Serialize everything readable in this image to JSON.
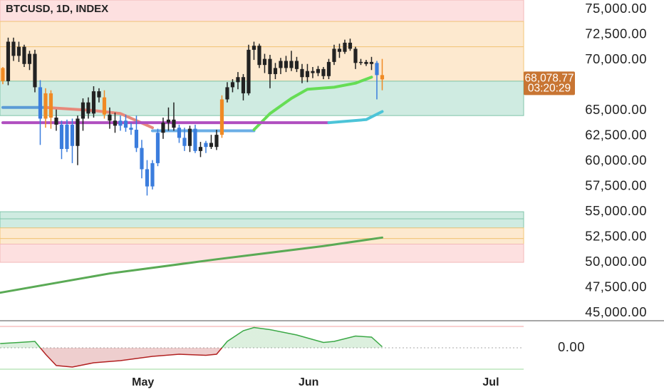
{
  "chart_data": {
    "type": "candlestick",
    "title": "BTCUSD, 1D, INDEX",
    "xlim": [
      -0.53,
      97.47
    ],
    "xticks": [
      {
        "value": 26.1,
        "label": "May"
      },
      {
        "value": 57.1,
        "label": "Jun"
      },
      {
        "value": 91.2,
        "label": "Jul"
      }
    ],
    "ylim": [
      44230,
      75920
    ],
    "yticks": [
      {
        "value": 75000,
        "label": "75,000.00"
      },
      {
        "value": 72500,
        "label": "72,500.00"
      },
      {
        "value": 70000,
        "label": "70,000.00"
      },
      {
        "value": 65000,
        "label": "65,000.00"
      },
      {
        "value": 62500,
        "label": "62,500.00"
      },
      {
        "value": 60000,
        "label": "60,000.00"
      },
      {
        "value": 57500,
        "label": "57,500.00"
      },
      {
        "value": 55000,
        "label": "55,000.00"
      },
      {
        "value": 52500,
        "label": "52,500.00"
      },
      {
        "value": 50000,
        "label": "50,000.00"
      },
      {
        "value": 47500,
        "label": "47,500.00"
      },
      {
        "value": 45000,
        "label": "45,000.00"
      }
    ],
    "last_price": {
      "value": 68078.77,
      "label": "68,078.77",
      "color": "#c87533"
    },
    "countdown": "03:20:29",
    "zones": [
      {
        "from": 73800,
        "to": 75920,
        "fill": "#fde0e0",
        "stroke": "#f3b9b9"
      },
      {
        "from": 71300,
        "to": 73800,
        "fill": "#fde9cf",
        "stroke": "#f2c57a"
      },
      {
        "from": 67900,
        "to": 71300,
        "fill": "#fde9cf",
        "stroke": "#f2c57a"
      },
      {
        "from": 64500,
        "to": 67900,
        "fill": "#cfebe1",
        "stroke": "#80c5aa"
      },
      {
        "from": 54300,
        "to": 55000,
        "fill": "#cfebe1",
        "stroke": "#80c5aa"
      },
      {
        "from": 53400,
        "to": 54300,
        "fill": "#cfebe1",
        "stroke": "#80c5aa"
      },
      {
        "from": 52350,
        "to": 53400,
        "fill": "#fde9cf",
        "stroke": "#f2c57a"
      },
      {
        "from": 51800,
        "to": 52350,
        "fill": "#fde9cf",
        "stroke": "#f2c57a"
      },
      {
        "from": 50000,
        "to": 51800,
        "fill": "#fde0e0",
        "stroke": "#f3b9b9"
      }
    ],
    "open": [
      69200,
      67900,
      71800,
      70400,
      71300,
      69600,
      70600,
      67300,
      64200,
      66700,
      64300,
      63600,
      61200,
      63600,
      61500,
      64200,
      65800,
      64700,
      66900,
      66300,
      64600,
      64000,
      63500,
      64000,
      63300,
      63100,
      61300,
      59200,
      57500,
      59800,
      62800,
      63800,
      64100,
      63300,
      62300,
      61500,
      63200,
      61000,
      61400,
      61800,
      61400,
      62600,
      66100,
      67300,
      67800,
      68300,
      66700,
      71000,
      71400,
      69500,
      70100,
      68600,
      69200,
      69900,
      69200,
      69900,
      69100,
      68300,
      68900,
      68700,
      69100,
      68400,
      69800,
      71100,
      70800,
      71700,
      71100,
      69700,
      69800,
      69600,
      69700,
      68500
    ],
    "high": [
      69300,
      72200,
      72200,
      71800,
      71500,
      70900,
      71000,
      68000,
      67200,
      67000,
      65100,
      64000,
      64100,
      64200,
      64500,
      66200,
      66300,
      67400,
      67200,
      67000,
      65300,
      64800,
      64500,
      64600,
      63800,
      64500,
      62100,
      60100,
      60100,
      63200,
      64300,
      65300,
      65800,
      63600,
      63300,
      63500,
      63600,
      61900,
      62000,
      62600,
      63100,
      66500,
      67800,
      68100,
      68800,
      68600,
      71500,
      71800,
      71600,
      70600,
      70500,
      69700,
      70200,
      70400,
      70900,
      70300,
      69600,
      69600,
      69300,
      69400,
      69300,
      70100,
      71500,
      71600,
      72000,
      72100,
      71300,
      70100,
      70000,
      70300,
      69900,
      70100
    ],
    "low": [
      67600,
      67500,
      69900,
      69800,
      69300,
      69000,
      66800,
      61600,
      63300,
      63200,
      63000,
      60200,
      60900,
      59800,
      59600,
      63000,
      64200,
      64300,
      65800,
      64200,
      63200,
      62800,
      63000,
      62900,
      62600,
      60900,
      58300,
      56600,
      57200,
      59500,
      62200,
      63000,
      63000,
      61800,
      61000,
      60900,
      60800,
      60400,
      60800,
      61200,
      61100,
      62300,
      65800,
      66800,
      67100,
      66000,
      66500,
      70000,
      69200,
      68700,
      67200,
      68100,
      68600,
      68800,
      68900,
      68800,
      67700,
      67800,
      68200,
      68400,
      68100,
      68100,
      69500,
      70200,
      70600,
      70900,
      69100,
      69500,
      69400,
      69000,
      66100,
      67000
    ],
    "close": [
      67900,
      71800,
      70400,
      71300,
      69600,
      70600,
      67300,
      64200,
      66700,
      64300,
      63600,
      61200,
      63600,
      61500,
      64200,
      65800,
      64700,
      66900,
      66300,
      64600,
      64000,
      63500,
      64000,
      63300,
      63100,
      61300,
      59200,
      57500,
      59800,
      62800,
      63800,
      64100,
      63300,
      62300,
      61500,
      63200,
      61000,
      61400,
      61800,
      61400,
      62600,
      66100,
      67300,
      67800,
      68300,
      66700,
      71000,
      71400,
      69500,
      70100,
      68600,
      69200,
      69900,
      69200,
      69900,
      69100,
      68300,
      68900,
      68700,
      69100,
      68400,
      69800,
      71100,
      70800,
      71700,
      71100,
      69700,
      69800,
      69600,
      69800,
      68500,
      68078.77
    ],
    "colors": [
      "#f08a24",
      "#222222",
      "#222222",
      "#222222",
      "#222222",
      "#222222",
      "#222222",
      "#3b7ddd",
      "#f08a24",
      "#f08a24",
      "#222222",
      "#3b7ddd",
      "#3b7ddd",
      "#3b7ddd",
      "#222222",
      "#222222",
      "#222222",
      "#222222",
      "#222222",
      "#f08a24",
      "#222222",
      "#222222",
      "#3b7ddd",
      "#3b7ddd",
      "#3b7ddd",
      "#3b7ddd",
      "#3b7ddd",
      "#3b7ddd",
      "#3b7ddd",
      "#3b7ddd",
      "#222222",
      "#222222",
      "#222222",
      "#3b7ddd",
      "#3b7ddd",
      "#222222",
      "#3b7ddd",
      "#222222",
      "#3b7ddd",
      "#222222",
      "#222222",
      "#f08a24",
      "#222222",
      "#222222",
      "#222222",
      "#222222",
      "#222222",
      "#222222",
      "#222222",
      "#222222",
      "#222222",
      "#222222",
      "#222222",
      "#222222",
      "#222222",
      "#222222",
      "#222222",
      "#222222",
      "#222222",
      "#222222",
      "#222222",
      "#222222",
      "#222222",
      "#222222",
      "#222222",
      "#222222",
      "#222222",
      "#222222",
      "#222222",
      "#222222",
      "#3b7ddd",
      "#f08a24"
    ],
    "overlays": [
      {
        "color": "#5b9bd5",
        "width": 4,
        "x": [
          0,
          8
        ],
        "values": [
          65300,
          65300
        ]
      },
      {
        "color": "#e8897a",
        "width": 4,
        "x": [
          8,
          17,
          22,
          28
        ],
        "values": [
          65300,
          65000,
          64700,
          63300
        ]
      },
      {
        "color": "#6aaee6",
        "width": 4,
        "x": [
          28,
          47
        ],
        "values": [
          63000,
          63000
        ]
      },
      {
        "color": "#66dd55",
        "width": 4,
        "x": [
          47,
          50,
          54,
          57,
          62,
          66,
          69
        ],
        "values": [
          63100,
          64700,
          66200,
          67100,
          67300,
          67700,
          68300
        ]
      },
      {
        "color": "#b04fc0",
        "width": 4,
        "x": [
          0,
          61
        ],
        "values": [
          63800,
          63800
        ]
      },
      {
        "color": "#4cc4d8",
        "width": 4,
        "x": [
          61,
          68,
          71
        ],
        "values": [
          63800,
          64100,
          64900
        ]
      },
      {
        "color": "#5aaa55",
        "width": 3,
        "x": [
          -0.5,
          20,
          40,
          60,
          71
        ],
        "values": [
          47000,
          48900,
          50300,
          51600,
          52450
        ]
      }
    ],
    "oscillator": {
      "ylim": [
        -1,
        1
      ],
      "yticks": [
        {
          "value": 0,
          "label": "0.00"
        }
      ],
      "up_color": "#3aa845",
      "down_color": "#b22222",
      "x": [
        -0.5,
        3,
        6,
        8,
        10,
        13,
        17,
        22,
        28,
        33,
        38,
        40,
        42,
        45,
        47,
        50,
        55,
        60,
        62,
        66,
        69,
        71
      ],
      "values": [
        0.2,
        0.25,
        0.3,
        -0.3,
        -0.83,
        -0.9,
        -0.7,
        -0.6,
        -0.4,
        -0.3,
        -0.35,
        -0.3,
        0.3,
        0.8,
        0.95,
        0.85,
        0.6,
        0.25,
        0.3,
        0.55,
        0.5,
        0.05
      ]
    }
  }
}
